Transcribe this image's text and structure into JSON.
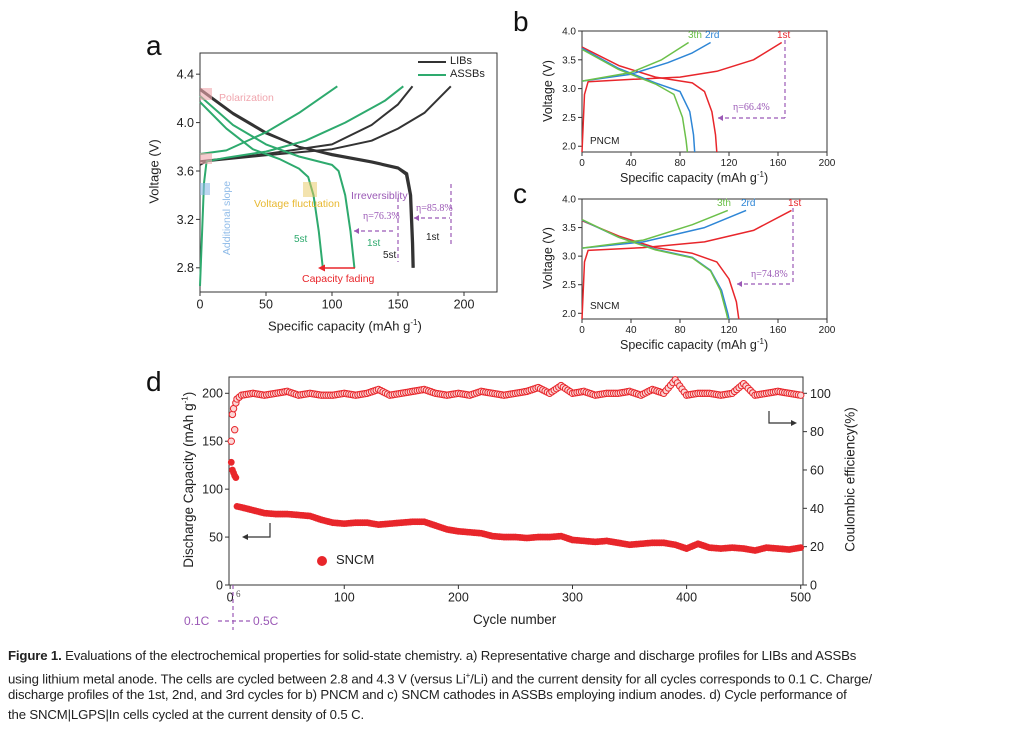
{
  "panels": {
    "a": "a",
    "b": "b",
    "c": "c",
    "d": "d"
  },
  "colors": {
    "lib": "#333333",
    "assb": "#2eaa6e",
    "red": "#e8262b",
    "blue": "#2e86d6",
    "green": "#6cc04a",
    "purple": "#9b59b6",
    "pink": "#f0a6ae",
    "lightblue": "#8fbbe8",
    "orange": "#e8b830"
  },
  "chart_data": [
    {
      "id": "a",
      "type": "line",
      "xlabel": "Specific capacity (mAh g",
      "xlabel_sup": "-1",
      "xlabel_end": ")",
      "ylabel": "Voltage (V)",
      "xlim": [
        0,
        225
      ],
      "ylim": [
        2.6,
        4.575
      ],
      "xticks": [
        0,
        50,
        100,
        150,
        200
      ],
      "yticks": [
        2.8,
        3.2,
        3.6,
        4.0,
        4.4
      ],
      "legend": [
        {
          "name": "LIBs",
          "color": "#333333"
        },
        {
          "name": "ASSBs",
          "color": "#2eaa6e"
        }
      ],
      "legend_position": "top-right",
      "series": [
        {
          "name": "LIBs",
          "cycle": "1st charge",
          "color": "#333333",
          "points": [
            [
              0,
              3.65
            ],
            [
              5,
              3.68
            ],
            [
              50,
              3.73
            ],
            [
              100,
              3.78
            ],
            [
              130,
              3.85
            ],
            [
              150,
              3.95
            ],
            [
              170,
              4.08
            ],
            [
              190,
              4.3
            ]
          ]
        },
        {
          "name": "LIBs",
          "cycle": "5st charge",
          "color": "#333333",
          "points": [
            [
              0,
              3.68
            ],
            [
              50,
              3.74
            ],
            [
              100,
              3.82
            ],
            [
              130,
              3.98
            ],
            [
              150,
              4.15
            ],
            [
              161,
              4.3
            ]
          ]
        },
        {
          "name": "LIBs",
          "cycle": "1st discharge",
          "color": "#333333",
          "points": [
            [
              0,
              4.28
            ],
            [
              25,
              4.08
            ],
            [
              50,
              3.92
            ],
            [
              75,
              3.8
            ],
            [
              100,
              3.74
            ],
            [
              130,
              3.68
            ],
            [
              150,
              3.63
            ],
            [
              157,
              3.58
            ],
            [
              160,
              3.4
            ],
            [
              161.5,
              3.0
            ],
            [
              162,
              2.8
            ]
          ]
        },
        {
          "name": "LIBs",
          "cycle": "5st discharge",
          "color": "#333333",
          "points": [
            [
              0,
              4.27
            ],
            [
              25,
              4.07
            ],
            [
              50,
              3.91
            ],
            [
              75,
              3.8
            ],
            [
              100,
              3.73
            ],
            [
              130,
              3.67
            ],
            [
              150,
              3.62
            ],
            [
              156,
              3.57
            ],
            [
              159,
              3.4
            ],
            [
              160.5,
              3.0
            ],
            [
              161,
              2.8
            ]
          ]
        },
        {
          "name": "ASSBs",
          "cycle": "1st charge",
          "color": "#2eaa6e",
          "points": [
            [
              0,
              2.65
            ],
            [
              3,
              3.5
            ],
            [
              5,
              3.68
            ],
            [
              20,
              3.71
            ],
            [
              50,
              3.76
            ],
            [
              80,
              3.85
            ],
            [
              110,
              4.0
            ],
            [
              140,
              4.18
            ],
            [
              154,
              4.3
            ]
          ]
        },
        {
          "name": "ASSBs",
          "cycle": "5st charge",
          "color": "#2eaa6e",
          "points": [
            [
              0,
              3.74
            ],
            [
              20,
              3.77
            ],
            [
              50,
              3.92
            ],
            [
              75,
              4.08
            ],
            [
              104,
              4.3
            ]
          ]
        },
        {
          "name": "ASSBs",
          "cycle": "1st discharge",
          "color": "#2eaa6e",
          "points": [
            [
              0,
              4.22
            ],
            [
              25,
              3.98
            ],
            [
              50,
              3.82
            ],
            [
              75,
              3.72
            ],
            [
              100,
              3.65
            ],
            [
              105,
              3.6
            ],
            [
              110,
              3.4
            ],
            [
              114,
              3.1
            ],
            [
              117,
              2.8
            ]
          ]
        },
        {
          "name": "ASSBs",
          "cycle": "5st discharge",
          "color": "#2eaa6e",
          "points": [
            [
              0,
              4.17
            ],
            [
              20,
              3.95
            ],
            [
              40,
              3.78
            ],
            [
              60,
              3.7
            ],
            [
              75,
              3.62
            ],
            [
              82,
              3.55
            ],
            [
              86,
              3.4
            ],
            [
              90,
              3.1
            ],
            [
              93,
              2.8
            ]
          ]
        }
      ],
      "annotations": {
        "polarization": "Polarization",
        "additional_slope": "Additional slope",
        "voltage_fluctuation": "Voltage fluctuation",
        "irreversibility": "Irreversiblity",
        "eta_assb": "η=76.3%",
        "eta_lib": "η=85.8%",
        "assb_5st": "5st",
        "assb_1st": "1st",
        "lib_1st": "1st",
        "lib_5st": "5st",
        "capacity_fading": "Capacity fading"
      }
    },
    {
      "id": "b",
      "type": "line",
      "xlabel": "Specific capacity (mAh g",
      "xlabel_sup": "-1",
      "xlabel_end": ")",
      "ylabel": "Voltage (V)",
      "xlim": [
        0,
        200
      ],
      "ylim": [
        1.9,
        4.0
      ],
      "xticks": [
        0,
        40,
        80,
        120,
        160,
        200
      ],
      "yticks": [
        2.0,
        2.5,
        3.0,
        3.5,
        4.0
      ],
      "sample": "PNCM",
      "series": [
        {
          "name": "1st",
          "color": "#e8262b",
          "points": [
            [
              0,
              1.9
            ],
            [
              2,
              2.9
            ],
            [
              5,
              3.12
            ],
            [
              40,
              3.16
            ],
            [
              80,
              3.2
            ],
            [
              110,
              3.3
            ],
            [
              140,
              3.5
            ],
            [
              163,
              3.8
            ]
          ]
        },
        {
          "name": "1st",
          "color": "#e8262b",
          "points": [
            [
              0,
              3.72
            ],
            [
              30,
              3.4
            ],
            [
              60,
              3.2
            ],
            [
              90,
              3.1
            ],
            [
              100,
              2.95
            ],
            [
              106,
              2.6
            ],
            [
              109,
              2.2
            ],
            [
              110,
              1.9
            ]
          ]
        },
        {
          "name": "2rd",
          "color": "#2e86d6",
          "points": [
            [
              0,
              3.13
            ],
            [
              40,
              3.25
            ],
            [
              70,
              3.45
            ],
            [
              90,
              3.62
            ],
            [
              105,
              3.8
            ]
          ]
        },
        {
          "name": "2rd",
          "color": "#2e86d6",
          "points": [
            [
              0,
              3.7
            ],
            [
              30,
              3.35
            ],
            [
              60,
              3.1
            ],
            [
              80,
              2.95
            ],
            [
              88,
              2.6
            ],
            [
              91,
              2.2
            ],
            [
              92,
              1.9
            ]
          ]
        },
        {
          "name": "3th",
          "color": "#6cc04a",
          "points": [
            [
              0,
              3.13
            ],
            [
              40,
              3.28
            ],
            [
              65,
              3.5
            ],
            [
              87,
              3.8
            ]
          ]
        },
        {
          "name": "3th",
          "color": "#6cc04a",
          "points": [
            [
              0,
              3.68
            ],
            [
              30,
              3.33
            ],
            [
              60,
              3.08
            ],
            [
              75,
              2.9
            ],
            [
              82,
              2.5
            ],
            [
              85,
              2.1
            ],
            [
              86,
              1.9
            ]
          ]
        }
      ],
      "labels": {
        "first": "1st",
        "second": "2rd",
        "third": "3th",
        "eta": "η=66.4%"
      }
    },
    {
      "id": "c",
      "type": "line",
      "xlabel": "Specific capacity (mAh g",
      "xlabel_sup": "-1",
      "xlabel_end": ")",
      "ylabel": "Voltage (V)",
      "xlim": [
        0,
        200
      ],
      "ylim": [
        1.9,
        4.0
      ],
      "xticks": [
        0,
        40,
        80,
        120,
        160,
        200
      ],
      "yticks": [
        2.0,
        2.5,
        3.0,
        3.5,
        4.0
      ],
      "sample": "SNCM",
      "series": [
        {
          "name": "1st",
          "color": "#e8262b",
          "points": [
            [
              0,
              1.9
            ],
            [
              2,
              2.9
            ],
            [
              5,
              3.1
            ],
            [
              50,
              3.15
            ],
            [
              100,
              3.25
            ],
            [
              140,
              3.45
            ],
            [
              171,
              3.8
            ]
          ]
        },
        {
          "name": "1st",
          "color": "#e8262b",
          "points": [
            [
              0,
              3.62
            ],
            [
              30,
              3.35
            ],
            [
              60,
              3.15
            ],
            [
              90,
              3.05
            ],
            [
              110,
              2.9
            ],
            [
              120,
              2.6
            ],
            [
              126,
              2.2
            ],
            [
              128,
              1.9
            ]
          ]
        },
        {
          "name": "2rd",
          "color": "#2e86d6",
          "points": [
            [
              0,
              3.14
            ],
            [
              50,
              3.25
            ],
            [
              100,
              3.5
            ],
            [
              134,
              3.8
            ]
          ]
        },
        {
          "name": "2rd",
          "color": "#2e86d6",
          "points": [
            [
              0,
              3.63
            ],
            [
              30,
              3.33
            ],
            [
              60,
              3.12
            ],
            [
              90,
              2.98
            ],
            [
              105,
              2.75
            ],
            [
              114,
              2.4
            ],
            [
              119,
              2.0
            ],
            [
              120,
              1.9
            ]
          ]
        },
        {
          "name": "3th",
          "color": "#6cc04a",
          "points": [
            [
              0,
              3.14
            ],
            [
              50,
              3.28
            ],
            [
              90,
              3.55
            ],
            [
              119,
              3.8
            ]
          ]
        },
        {
          "name": "3th",
          "color": "#6cc04a",
          "points": [
            [
              0,
              3.64
            ],
            [
              30,
              3.33
            ],
            [
              60,
              3.11
            ],
            [
              90,
              2.97
            ],
            [
              105,
              2.74
            ],
            [
              113,
              2.4
            ],
            [
              118,
              2.0
            ],
            [
              119,
              1.9
            ]
          ]
        }
      ],
      "labels": {
        "first": "1st",
        "second": "2rd",
        "third": "3th",
        "eta": "η=74.8%"
      }
    },
    {
      "id": "d",
      "type": "scatter",
      "xlabel": "Cycle number",
      "ylabel": "Discharge Capacity (mAh g",
      "ylabel_sup": "-1",
      "ylabel_end": ")",
      "y2label": "Coulombic efficiency(%)",
      "xlim": [
        -1,
        502
      ],
      "ylim": [
        0,
        217
      ],
      "y2lim": [
        0,
        108.5
      ],
      "xticks": [
        0,
        100,
        200,
        300,
        400,
        500
      ],
      "yticks": [
        0,
        50,
        100,
        150,
        200
      ],
      "y2ticks": [
        0,
        20,
        40,
        60,
        80,
        100
      ],
      "legend": "SNCM",
      "rate_marker": {
        "cycle": "6",
        "before": "0.1C",
        "after": "0.5C"
      },
      "capacity": {
        "cycles": [
          1,
          2,
          3,
          4,
          5,
          6,
          10,
          20,
          30,
          40,
          50,
          60,
          70,
          80,
          90,
          100,
          110,
          120,
          130,
          140,
          150,
          160,
          170,
          180,
          190,
          200,
          210,
          220,
          230,
          240,
          250,
          260,
          270,
          280,
          290,
          300,
          310,
          320,
          330,
          340,
          350,
          360,
          370,
          380,
          390,
          400,
          410,
          420,
          430,
          440,
          450,
          460,
          470,
          480,
          490,
          500
        ],
        "values": [
          128,
          120,
          117,
          114,
          112,
          82,
          81,
          78,
          75,
          74,
          74,
          73,
          72,
          68,
          65,
          64,
          65,
          65,
          63,
          64,
          65,
          66,
          66,
          62,
          58,
          56,
          55,
          54,
          51,
          50,
          50,
          49,
          50,
          50,
          51,
          47,
          46,
          45,
          46,
          44,
          42,
          43,
          44,
          44,
          42,
          38,
          43,
          39,
          38,
          39,
          38,
          36,
          39,
          38,
          37,
          39
        ]
      },
      "coulombic_efficiency": {
        "cycles": [
          1,
          2,
          3,
          4,
          5,
          6,
          8,
          10,
          20,
          30,
          40,
          50,
          60,
          70,
          80,
          90,
          100,
          110,
          120,
          130,
          140,
          150,
          160,
          170,
          180,
          190,
          200,
          210,
          220,
          230,
          240,
          250,
          260,
          270,
          280,
          290,
          300,
          310,
          320,
          330,
          340,
          350,
          360,
          370,
          380,
          390,
          400,
          410,
          420,
          430,
          440,
          450,
          460,
          470,
          480,
          490,
          500
        ],
        "values": [
          75,
          89,
          92,
          81,
          95,
          97,
          98,
          99,
          100,
          99,
          100,
          101,
          99,
          100,
          99,
          99,
          100,
          99,
          100,
          102,
          99,
          100,
          101,
          102,
          100,
          99,
          100,
          99,
          101,
          100,
          99,
          100,
          101,
          103,
          100,
          104,
          100,
          101,
          99,
          100,
          100,
          101,
          99,
          102,
          100,
          107,
          99,
          100,
          100,
          99,
          100,
          105,
          99,
          100,
          101,
          100,
          99
        ]
      }
    }
  ],
  "caption": {
    "label": "Figure 1.",
    "line1": " Evaluations of the electrochemical properties for solid-state chemistry. a) Representative charge and discharge profiles for LIBs and ASSBs",
    "line2a": "using lithium metal anode. The cells are cycled between 2.8 and 4.3 V (versus Li",
    "line2sup": "+",
    "line2b": "/Li) and the current density for all cycles corresponds to 0.1 C. Charge/",
    "line3": "discharge profiles of the 1st, 2nd, and 3rd cycles for b) PNCM and c) SNCM cathodes in ASSBs employing indium anodes. d) Cycle performance of",
    "line4": "the SNCM|LGPS|In cells cycled at the current density of 0.5 C."
  }
}
